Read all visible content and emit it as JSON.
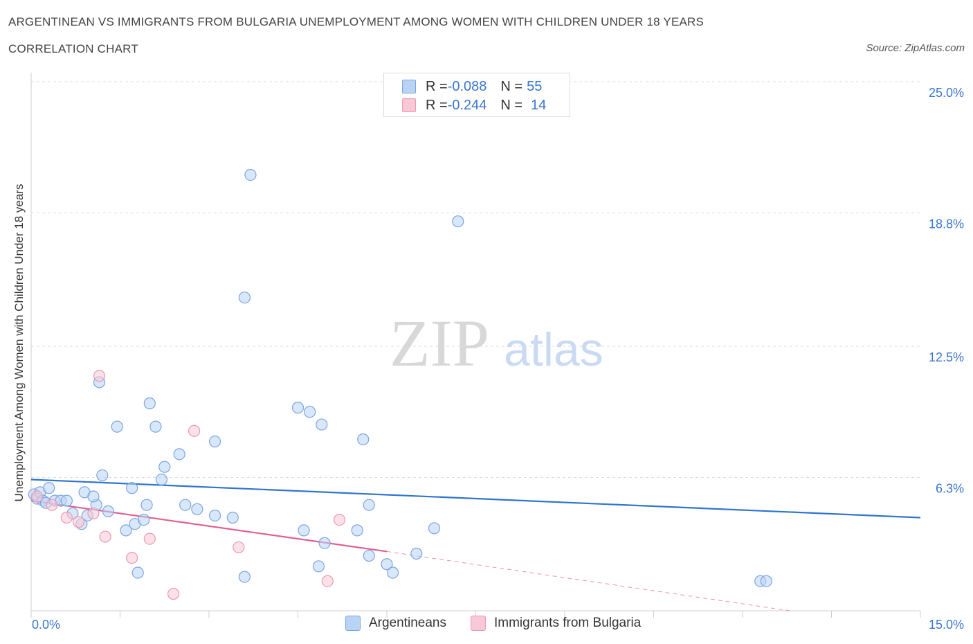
{
  "header": {
    "title": "ARGENTINEAN VS IMMIGRANTS FROM BULGARIA UNEMPLOYMENT AMONG WOMEN WITH CHILDREN UNDER 18 YEARS",
    "subtitle": "CORRELATION CHART",
    "source": "Source: ZipAtlas.com"
  },
  "legend": {
    "row1": {
      "r_label": "R = ",
      "r_value": "-0.088",
      "n_label": "N = ",
      "n_value": "55"
    },
    "row2": {
      "r_label": "R = ",
      "r_value": "-0.244",
      "n_label": "N = ",
      "n_value": "14"
    }
  },
  "watermark": {
    "zip": "ZIP",
    "atlas": "atlas"
  },
  "colors": {
    "blue_fill": "#b9d3f5",
    "blue_stroke": "#7aa6e0",
    "blue_line": "#2f74d0",
    "pink_fill": "#f9c8d6",
    "pink_stroke": "#ec98b2",
    "pink_line": "#e06090",
    "accent_text": "#3a76d0"
  },
  "chart_data": {
    "type": "scatter",
    "title": "ARGENTINEAN VS IMMIGRANTS FROM BULGARIA UNEMPLOYMENT AMONG WOMEN WITH CHILDREN UNDER 18 YEARS",
    "xlabel": "",
    "ylabel": "Unemployment Among Women with Children Under 18 years",
    "xlim": [
      0,
      15
    ],
    "ylim": [
      0,
      25
    ],
    "x_ticks_labeled": [
      "0.0%",
      "15.0%"
    ],
    "y_ticks": [
      6.3,
      12.5,
      18.8,
      25.0
    ],
    "y_tick_labels": [
      "6.3%",
      "12.5%",
      "18.8%",
      "25.0%"
    ],
    "grid": "horizontal dashed",
    "legend_position": "top-center and bottom",
    "series": [
      {
        "name": "Argentineans",
        "r": -0.088,
        "n": 55,
        "trend": {
          "x": [
            0,
            15
          ],
          "y": [
            6.2,
            4.4
          ]
        },
        "points": [
          [
            0.05,
            5.5
          ],
          [
            0.1,
            5.3
          ],
          [
            0.15,
            5.6
          ],
          [
            0.2,
            5.2
          ],
          [
            0.25,
            5.1
          ],
          [
            0.4,
            5.2
          ],
          [
            0.5,
            5.2
          ],
          [
            0.6,
            5.2
          ],
          [
            0.7,
            4.6
          ],
          [
            0.85,
            4.1
          ],
          [
            0.95,
            4.5
          ],
          [
            0.9,
            5.6
          ],
          [
            1.1,
            5.0
          ],
          [
            1.3,
            4.7
          ],
          [
            1.05,
            5.4
          ],
          [
            1.2,
            6.4
          ],
          [
            1.6,
            3.8
          ],
          [
            1.75,
            4.1
          ],
          [
            1.9,
            4.3
          ],
          [
            1.8,
            1.8
          ],
          [
            2.0,
            9.8
          ],
          [
            2.1,
            8.7
          ],
          [
            2.2,
            6.2
          ],
          [
            2.25,
            6.8
          ],
          [
            2.5,
            7.4
          ],
          [
            2.6,
            5.0
          ],
          [
            2.8,
            4.8
          ],
          [
            3.1,
            4.5
          ],
          [
            3.1,
            8.0
          ],
          [
            3.4,
            4.4
          ],
          [
            3.6,
            1.6
          ],
          [
            3.6,
            14.8
          ],
          [
            3.7,
            20.6
          ],
          [
            4.5,
            9.6
          ],
          [
            4.6,
            3.8
          ],
          [
            4.7,
            9.4
          ],
          [
            4.9,
            8.8
          ],
          [
            4.95,
            3.2
          ],
          [
            4.85,
            2.1
          ],
          [
            5.5,
            3.8
          ],
          [
            5.6,
            8.1
          ],
          [
            5.7,
            5.0
          ],
          [
            5.7,
            2.6
          ],
          [
            6.0,
            2.2
          ],
          [
            6.1,
            1.8
          ],
          [
            6.5,
            2.7
          ],
          [
            6.8,
            3.9
          ],
          [
            7.2,
            18.4
          ],
          [
            12.3,
            1.4
          ],
          [
            12.4,
            1.4
          ],
          [
            1.15,
            10.8
          ],
          [
            1.7,
            5.8
          ],
          [
            1.45,
            8.7
          ],
          [
            1.95,
            5.0
          ],
          [
            0.3,
            5.8
          ]
        ]
      },
      {
        "name": "Immigrants from Bulgaria",
        "r": -0.244,
        "n": 14,
        "trend": {
          "x": [
            0,
            6
          ],
          "y": [
            5.2,
            2.8
          ]
        },
        "trend_extension": {
          "x": [
            6,
            12.8
          ],
          "y": [
            2.8,
            0.0
          ]
        },
        "points": [
          [
            0.1,
            5.4
          ],
          [
            0.35,
            5.0
          ],
          [
            0.6,
            4.4
          ],
          [
            0.8,
            4.2
          ],
          [
            1.15,
            11.1
          ],
          [
            1.25,
            3.5
          ],
          [
            1.7,
            2.5
          ],
          [
            2.0,
            3.4
          ],
          [
            2.4,
            0.8
          ],
          [
            2.75,
            8.5
          ],
          [
            3.5,
            3.0
          ],
          [
            5.2,
            4.3
          ],
          [
            5.0,
            1.4
          ],
          [
            1.05,
            4.6
          ]
        ]
      }
    ]
  }
}
